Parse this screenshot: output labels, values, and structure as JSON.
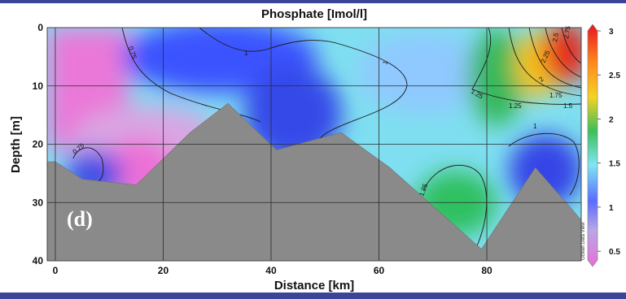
{
  "chart_data": {
    "type": "heatmap",
    "title": "Phosphate [Imol/l]",
    "xlabel": "Distance [km]",
    "ylabel": "Depth [m]",
    "xlim": [
      -1.5,
      97.5
    ],
    "ylim": [
      40,
      0
    ],
    "x_ticks": [
      "0",
      "20",
      "40",
      "60",
      "80"
    ],
    "x_tick_values": [
      0,
      20,
      40,
      60,
      80
    ],
    "y_ticks": [
      "0",
      "10",
      "20",
      "30",
      "40"
    ],
    "y_tick_values": [
      0,
      10,
      20,
      30,
      40
    ],
    "grid": true,
    "panel_label": "(d)",
    "watermark": "Ocean Data View",
    "colorbar": {
      "ticks": [
        "0.5",
        "1",
        "1.5",
        "2",
        "2.5",
        "3"
      ],
      "tick_values": [
        0.5,
        1,
        1.5,
        2,
        2.5,
        3
      ],
      "range": [
        0.4,
        3.0
      ],
      "colors": [
        "#e56fd9",
        "#b9a7e6",
        "#5a6bff",
        "#7fe6f4",
        "#3cbf5a",
        "#f6d321",
        "#ff8a1e",
        "#e8141e"
      ]
    },
    "contour_labels": [
      "0.75",
      "1",
      "1",
      "1",
      "1.25",
      "1.25",
      "1.5",
      "1.75",
      "2",
      "2.25",
      "2.5",
      "2.75",
      "0.75",
      "1.25"
    ],
    "bathymetry": {
      "distance_km": [
        -1.5,
        0,
        5,
        15,
        25,
        32,
        41,
        53,
        62,
        79,
        89,
        97.5
      ],
      "depth_m": [
        23,
        23,
        26,
        27,
        18,
        13,
        21,
        18,
        24,
        38,
        24,
        33
      ]
    },
    "colors": {
      "land": "#8a8a8a",
      "frame": "#3b4496"
    }
  }
}
